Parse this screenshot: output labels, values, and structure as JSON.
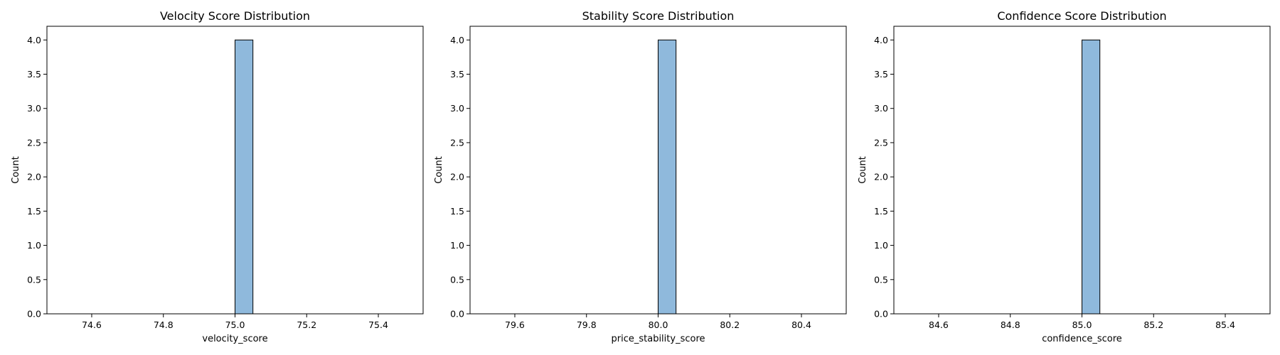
{
  "chart_data": [
    {
      "type": "bar",
      "title": "Velocity Score Distribution",
      "xlabel": "velocity_score",
      "ylabel": "Count",
      "xlim": [
        74.475,
        75.525
      ],
      "ylim": [
        0,
        4.2
      ],
      "x_ticks": [
        "74.6",
        "74.8",
        "75.0",
        "75.2",
        "75.4"
      ],
      "y_ticks": [
        "0.0",
        "0.5",
        "1.0",
        "1.5",
        "2.0",
        "2.5",
        "3.0",
        "3.5",
        "4.0"
      ],
      "bins": [
        {
          "x0": 75.0,
          "x1": 75.05,
          "count": 4
        }
      ],
      "baseline_range": [
        74.5,
        75.5
      ],
      "bar_color": "#8fb9dc",
      "edge_color": "#000000"
    },
    {
      "type": "bar",
      "title": "Stability Score Distribution",
      "xlabel": "price_stability_score",
      "ylabel": "Count",
      "xlim": [
        79.475,
        80.525
      ],
      "ylim": [
        0,
        4.2
      ],
      "x_ticks": [
        "79.6",
        "79.8",
        "80.0",
        "80.2",
        "80.4"
      ],
      "y_ticks": [
        "0.0",
        "0.5",
        "1.0",
        "1.5",
        "2.0",
        "2.5",
        "3.0",
        "3.5",
        "4.0"
      ],
      "bins": [
        {
          "x0": 80.0,
          "x1": 80.05,
          "count": 4
        }
      ],
      "baseline_range": [
        79.5,
        80.5
      ],
      "bar_color": "#8fb9dc",
      "edge_color": "#000000"
    },
    {
      "type": "bar",
      "title": "Confidence Score Distribution",
      "xlabel": "confidence_score",
      "ylabel": "Count",
      "xlim": [
        84.475,
        85.525
      ],
      "ylim": [
        0,
        4.2
      ],
      "x_ticks": [
        "84.6",
        "84.8",
        "85.0",
        "85.2",
        "85.4"
      ],
      "y_ticks": [
        "0.0",
        "0.5",
        "1.0",
        "1.5",
        "2.0",
        "2.5",
        "3.0",
        "3.5",
        "4.0"
      ],
      "bins": [
        {
          "x0": 85.0,
          "x1": 85.05,
          "count": 4
        }
      ],
      "baseline_range": [
        84.5,
        85.5
      ],
      "bar_color": "#8fb9dc",
      "edge_color": "#000000"
    }
  ]
}
